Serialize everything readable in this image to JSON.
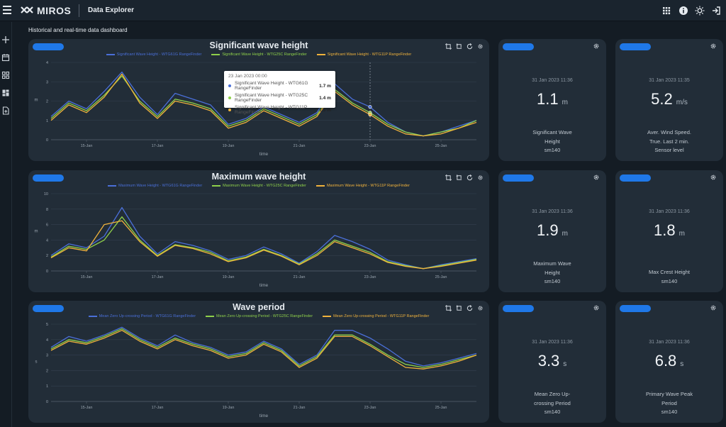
{
  "app": {
    "brand": "MIROS",
    "title": "Data Explorer"
  },
  "page_subtitle": "Historical and real-time data dashboard",
  "colors": {
    "blue": "#4a6fd8",
    "green": "#8ed04a",
    "yellow": "#f0b23c",
    "accent": "#1f78e8",
    "card": "#222d38"
  },
  "charts": [
    {
      "title": "Significant wave height",
      "legend": [
        "Significant Wave Height - WTG61G RangeFinder",
        "Significant Wave Height - WTG25C RangeFinder",
        "Significant Wave Height - WTG11P RangeFinder"
      ],
      "ylabel": "m",
      "xlabel": "time",
      "yticks": [
        "0",
        "1",
        "2",
        "3",
        "4"
      ],
      "xticks": [
        "15-Jan",
        "17-Jan",
        "19-Jan",
        "21-Jan",
        "23-Jan",
        "25-Jan"
      ]
    },
    {
      "title": "Maximum wave height",
      "legend": [
        "Maximum Wave Height - WTG61G RangeFinder",
        "Maximum Wave Height - WTG25C RangeFinder",
        "Maximum Wave Height - WTG11P RangeFinder"
      ],
      "ylabel": "m",
      "xlabel": "time",
      "yticks": [
        "0",
        "2",
        "4",
        "6",
        "8",
        "10"
      ],
      "xticks": [
        "15-Jan",
        "17-Jan",
        "19-Jan",
        "21-Jan",
        "23-Jan",
        "25-Jan"
      ]
    },
    {
      "title": "Wave period",
      "legend": [
        "Mean Zero Up-crossing Period - WTG61G RangeFinder",
        "Mean Zero Up-crossing Period - WTG25C RangeFinder",
        "Mean Zero Up-crossing Period - WTG11P RangeFinder"
      ],
      "ylabel": "s",
      "xlabel": "time",
      "yticks": [
        "0",
        "1",
        "2",
        "3",
        "4",
        "5"
      ],
      "xticks": [
        "15-Jan",
        "17-Jan",
        "19-Jan",
        "21-Jan",
        "23-Jan",
        "25-Jan"
      ]
    }
  ],
  "tooltip": {
    "date": "23 Jan 2023 00:00",
    "rows": [
      {
        "name": "Significant Wave Height - WTG61G RangeFinder",
        "value": "1.7 m"
      },
      {
        "name": "Significant Wave Height - WTG25C RangeFinder",
        "value": "1.4 m"
      },
      {
        "name": "Significant Wave Height - WTG11P RangeFinder",
        "value": "1.3 m"
      }
    ]
  },
  "kpis": [
    {
      "time": "31 Jan 2023 11:36",
      "value": "1.1",
      "unit": "m",
      "label": [
        "Significant Wave",
        "Height",
        "sm140"
      ]
    },
    {
      "time": "31 Jan 2023 11:35",
      "value": "5.2",
      "unit": "m/s",
      "label": [
        "Aver. Wind Speed.",
        "True. Last 2 min.",
        "Sensor level"
      ]
    },
    {
      "time": "31 Jan 2023 11:36",
      "value": "1.9",
      "unit": "m",
      "label": [
        "Maximum Wave",
        "Height",
        "sm140"
      ]
    },
    {
      "time": "31 Jan 2023 11:36",
      "value": "1.8",
      "unit": "m",
      "label": [
        "Max Crest Height",
        "sm140"
      ]
    },
    {
      "time": "31 Jan 2023 11:36",
      "value": "3.3",
      "unit": "s",
      "label": [
        "Mean Zero Up-",
        "crossing Period",
        "sm140"
      ]
    },
    {
      "time": "31 Jan 2023 11:36",
      "value": "6.8",
      "unit": "s",
      "label": [
        "Primary Wave Peak",
        "Period",
        "sm140"
      ]
    }
  ],
  "chart_data": [
    {
      "type": "line",
      "title": "Significant wave height",
      "xlabel": "time",
      "ylabel": "m",
      "ylim": [
        0,
        4
      ],
      "xlim": [
        "14-Jan",
        "26-Jan"
      ],
      "grid": true,
      "legend_position": "top-center",
      "x": [
        "14-Jan",
        "14.5",
        "15-Jan",
        "15.5",
        "16-Jan",
        "16.5",
        "17-Jan",
        "17.5",
        "18-Jan",
        "18.5",
        "19-Jan",
        "19.5",
        "20-Jan",
        "20.5",
        "21-Jan",
        "21.5",
        "22-Jan",
        "22.5",
        "23-Jan",
        "23.5",
        "24-Jan",
        "24.5",
        "25-Jan",
        "25.5",
        "26-Jan"
      ],
      "series": [
        {
          "name": "Significant Wave Height - WTG61G RangeFinder",
          "values": [
            1.2,
            2.0,
            1.6,
            2.5,
            3.5,
            2.2,
            1.3,
            2.4,
            2.1,
            1.8,
            0.8,
            1.1,
            1.7,
            1.3,
            0.9,
            1.4,
            2.9,
            2.1,
            1.7,
            0.9,
            0.4,
            0.2,
            0.4,
            0.7,
            1.0
          ]
        },
        {
          "name": "Significant Wave Height - WTG25C RangeFinder",
          "values": [
            1.1,
            1.9,
            1.5,
            2.3,
            3.3,
            2.0,
            1.2,
            2.1,
            1.9,
            1.6,
            0.7,
            1.0,
            1.6,
            1.2,
            0.8,
            1.3,
            2.6,
            1.9,
            1.4,
            0.8,
            0.4,
            0.2,
            0.4,
            0.6,
            1.0
          ]
        },
        {
          "name": "Significant Wave Height - WTG11P RangeFinder",
          "values": [
            1.0,
            1.8,
            1.4,
            2.2,
            3.4,
            1.9,
            1.1,
            2.0,
            1.8,
            1.5,
            0.6,
            0.9,
            1.5,
            1.1,
            0.7,
            1.2,
            2.5,
            1.8,
            1.3,
            0.7,
            0.3,
            0.2,
            0.3,
            0.6,
            0.9
          ]
        }
      ]
    },
    {
      "type": "line",
      "title": "Maximum wave height",
      "xlabel": "time",
      "ylabel": "m",
      "ylim": [
        0,
        10
      ],
      "xlim": [
        "14-Jan",
        "26-Jan"
      ],
      "grid": true,
      "legend_position": "top-center",
      "x": [
        "14-Jan",
        "14.5",
        "15-Jan",
        "15.5",
        "16-Jan",
        "16.5",
        "17-Jan",
        "17.5",
        "18-Jan",
        "18.5",
        "19-Jan",
        "19.5",
        "20-Jan",
        "20.5",
        "21-Jan",
        "21.5",
        "22-Jan",
        "22.5",
        "23-Jan",
        "23.5",
        "24-Jan",
        "24.5",
        "25-Jan",
        "25.5",
        "26-Jan"
      ],
      "series": [
        {
          "name": "Maximum Wave Height - WTG61G RangeFinder",
          "values": [
            2.0,
            3.5,
            3.0,
            4.5,
            8.2,
            4.5,
            2.2,
            3.8,
            3.3,
            2.6,
            1.5,
            2.0,
            3.1,
            2.2,
            1.0,
            2.5,
            4.6,
            3.8,
            2.8,
            1.4,
            0.8,
            0.3,
            0.8,
            1.2,
            1.6
          ]
        },
        {
          "name": "Maximum Wave Height - WTG25C RangeFinder",
          "values": [
            1.8,
            3.2,
            2.8,
            4.0,
            7.0,
            4.0,
            2.0,
            3.4,
            3.0,
            2.4,
            1.3,
            1.8,
            2.8,
            2.0,
            0.9,
            2.2,
            4.0,
            3.2,
            2.4,
            1.2,
            0.7,
            0.3,
            0.7,
            1.1,
            1.5
          ]
        },
        {
          "name": "Maximum Wave Height - WTG11P RangeFinder",
          "values": [
            1.7,
            3.0,
            2.6,
            6.0,
            6.5,
            3.8,
            1.9,
            3.3,
            2.9,
            2.2,
            1.2,
            1.7,
            2.7,
            1.9,
            0.8,
            2.0,
            3.8,
            3.0,
            2.2,
            1.1,
            0.6,
            0.3,
            0.6,
            1.0,
            1.4
          ]
        }
      ]
    },
    {
      "type": "line",
      "title": "Wave period",
      "xlabel": "time",
      "ylabel": "s",
      "ylim": [
        0,
        5
      ],
      "xlim": [
        "14-Jan",
        "26-Jan"
      ],
      "grid": true,
      "legend_position": "top-center",
      "x": [
        "14-Jan",
        "14.5",
        "15-Jan",
        "15.5",
        "16-Jan",
        "16.5",
        "17-Jan",
        "17.5",
        "18-Jan",
        "18.5",
        "19-Jan",
        "19.5",
        "20-Jan",
        "20.5",
        "21-Jan",
        "21.5",
        "22-Jan",
        "22.5",
        "23-Jan",
        "23.5",
        "24-Jan",
        "24.5",
        "25-Jan",
        "25.5",
        "26-Jan"
      ],
      "series": [
        {
          "name": "Mean Zero Up-crossing Period - WTG61G RangeFinder",
          "values": [
            3.5,
            4.2,
            3.9,
            4.3,
            4.8,
            4.1,
            3.6,
            4.3,
            3.8,
            3.5,
            3.0,
            3.2,
            3.9,
            3.4,
            2.4,
            3.0,
            4.6,
            4.6,
            4.1,
            3.4,
            2.6,
            2.3,
            2.5,
            2.8,
            3.1
          ]
        },
        {
          "name": "Mean Zero Up-crossing Period - WTG25C RangeFinder",
          "values": [
            3.4,
            4.0,
            3.8,
            4.2,
            4.7,
            4.0,
            3.5,
            4.1,
            3.7,
            3.4,
            2.9,
            3.1,
            3.8,
            3.3,
            2.3,
            2.9,
            4.3,
            4.3,
            3.7,
            3.0,
            2.4,
            2.2,
            2.4,
            2.7,
            3.0
          ]
        },
        {
          "name": "Mean Zero Up-crossing Period - WTG11P RangeFinder",
          "values": [
            3.3,
            3.9,
            3.7,
            4.1,
            4.6,
            3.9,
            3.4,
            4.0,
            3.6,
            3.3,
            2.8,
            3.0,
            3.7,
            3.2,
            2.2,
            2.8,
            4.2,
            4.2,
            3.6,
            2.9,
            2.2,
            2.1,
            2.3,
            2.6,
            3.0
          ]
        }
      ]
    }
  ]
}
